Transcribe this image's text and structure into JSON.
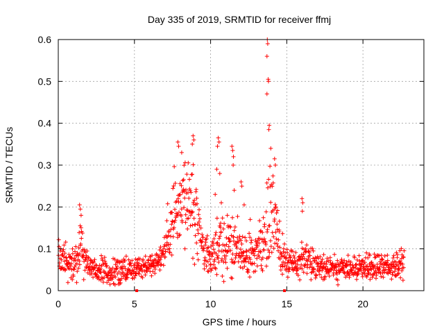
{
  "chart_data": {
    "type": "scatter",
    "title": "Day 335 of 2019, SRMTID for receiver ffmj",
    "xlabel": "GPS time / hours",
    "ylabel": "SRMTID / TECUs",
    "xlim": [
      0,
      24
    ],
    "ylim": [
      0,
      0.6
    ],
    "xticks": [
      "0",
      "5",
      "10",
      "15",
      "20"
    ],
    "yticks": [
      "0",
      "0.1",
      "0.2",
      "0.3",
      "0.4",
      "0.5",
      "0.6"
    ],
    "grid": true,
    "marker": "plus",
    "color": "#ff0000",
    "gap_markers_x": [
      5.15,
      14.85
    ],
    "profile": [
      {
        "x": 0.0,
        "base": 0.085,
        "spread": 0.03
      },
      {
        "x": 0.5,
        "base": 0.07,
        "spread": 0.03
      },
      {
        "x": 1.0,
        "base": 0.06,
        "spread": 0.03
      },
      {
        "x": 1.4,
        "base": 0.11,
        "spread": 0.06
      },
      {
        "x": 1.8,
        "base": 0.065,
        "spread": 0.03
      },
      {
        "x": 2.5,
        "base": 0.05,
        "spread": 0.025
      },
      {
        "x": 3.5,
        "base": 0.045,
        "spread": 0.025
      },
      {
        "x": 4.5,
        "base": 0.055,
        "spread": 0.025
      },
      {
        "x": 5.5,
        "base": 0.055,
        "spread": 0.025
      },
      {
        "x": 6.5,
        "base": 0.07,
        "spread": 0.025
      },
      {
        "x": 7.0,
        "base": 0.095,
        "spread": 0.035
      },
      {
        "x": 7.5,
        "base": 0.18,
        "spread": 0.07
      },
      {
        "x": 8.0,
        "base": 0.23,
        "spread": 0.09
      },
      {
        "x": 8.5,
        "base": 0.21,
        "spread": 0.09
      },
      {
        "x": 9.0,
        "base": 0.17,
        "spread": 0.08
      },
      {
        "x": 9.5,
        "base": 0.11,
        "spread": 0.04
      },
      {
        "x": 10.0,
        "base": 0.08,
        "spread": 0.03
      },
      {
        "x": 10.5,
        "base": 0.11,
        "spread": 0.07
      },
      {
        "x": 11.0,
        "base": 0.095,
        "spread": 0.05
      },
      {
        "x": 11.5,
        "base": 0.11,
        "spread": 0.06
      },
      {
        "x": 12.0,
        "base": 0.09,
        "spread": 0.045
      },
      {
        "x": 12.5,
        "base": 0.08,
        "spread": 0.04
      },
      {
        "x": 13.0,
        "base": 0.085,
        "spread": 0.04
      },
      {
        "x": 13.5,
        "base": 0.11,
        "spread": 0.06
      },
      {
        "x": 13.8,
        "base": 0.2,
        "spread": 0.1
      },
      {
        "x": 14.2,
        "base": 0.17,
        "spread": 0.08
      },
      {
        "x": 14.6,
        "base": 0.09,
        "spread": 0.04
      },
      {
        "x": 15.0,
        "base": 0.07,
        "spread": 0.035
      },
      {
        "x": 15.5,
        "base": 0.06,
        "spread": 0.03
      },
      {
        "x": 16.0,
        "base": 0.08,
        "spread": 0.04
      },
      {
        "x": 16.5,
        "base": 0.065,
        "spread": 0.03
      },
      {
        "x": 17.5,
        "base": 0.05,
        "spread": 0.025
      },
      {
        "x": 18.5,
        "base": 0.05,
        "spread": 0.025
      },
      {
        "x": 19.5,
        "base": 0.055,
        "spread": 0.025
      },
      {
        "x": 20.5,
        "base": 0.06,
        "spread": 0.025
      },
      {
        "x": 21.5,
        "base": 0.06,
        "spread": 0.025
      },
      {
        "x": 22.0,
        "base": 0.055,
        "spread": 0.025
      },
      {
        "x": 22.7,
        "base": 0.07,
        "spread": 0.03
      }
    ],
    "outliers": [
      {
        "x": 13.72,
        "y": 0.6
      },
      {
        "x": 13.75,
        "y": 0.59
      },
      {
        "x": 13.7,
        "y": 0.56
      },
      {
        "x": 13.78,
        "y": 0.505
      },
      {
        "x": 13.8,
        "y": 0.5
      },
      {
        "x": 13.7,
        "y": 0.47
      },
      {
        "x": 13.85,
        "y": 0.395
      },
      {
        "x": 13.82,
        "y": 0.385
      },
      {
        "x": 13.95,
        "y": 0.34
      },
      {
        "x": 14.2,
        "y": 0.315
      },
      {
        "x": 14.25,
        "y": 0.3
      },
      {
        "x": 7.85,
        "y": 0.355
      },
      {
        "x": 7.9,
        "y": 0.345
      },
      {
        "x": 8.1,
        "y": 0.33
      },
      {
        "x": 8.85,
        "y": 0.37
      },
      {
        "x": 8.9,
        "y": 0.36
      },
      {
        "x": 8.8,
        "y": 0.35
      },
      {
        "x": 10.5,
        "y": 0.365
      },
      {
        "x": 10.55,
        "y": 0.355
      },
      {
        "x": 10.45,
        "y": 0.345
      },
      {
        "x": 11.4,
        "y": 0.345
      },
      {
        "x": 11.45,
        "y": 0.335
      },
      {
        "x": 11.5,
        "y": 0.32
      },
      {
        "x": 11.48,
        "y": 0.3
      },
      {
        "x": 11.55,
        "y": 0.24
      },
      {
        "x": 10.4,
        "y": 0.29
      },
      {
        "x": 10.6,
        "y": 0.28
      },
      {
        "x": 12.0,
        "y": 0.26
      },
      {
        "x": 12.05,
        "y": 0.25
      },
      {
        "x": 1.4,
        "y": 0.205
      },
      {
        "x": 1.45,
        "y": 0.195
      },
      {
        "x": 1.5,
        "y": 0.18
      },
      {
        "x": 16.0,
        "y": 0.22
      },
      {
        "x": 16.05,
        "y": 0.21
      },
      {
        "x": 16.02,
        "y": 0.19
      },
      {
        "x": 10.3,
        "y": 0.23
      },
      {
        "x": 10.7,
        "y": 0.21
      },
      {
        "x": 11.1,
        "y": 0.18
      },
      {
        "x": 12.2,
        "y": 0.205
      },
      {
        "x": 12.6,
        "y": 0.17
      }
    ],
    "seed": 335
  }
}
